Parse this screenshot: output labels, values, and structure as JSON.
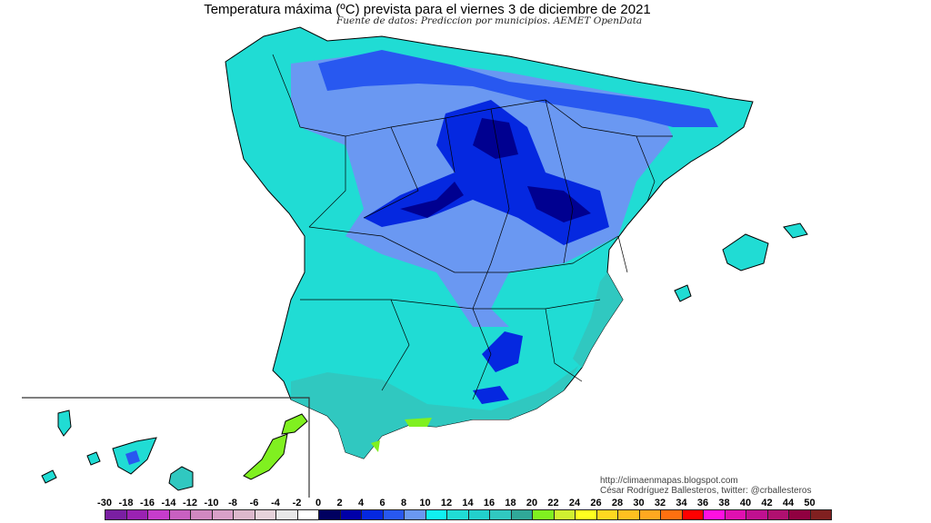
{
  "title": "Temperatura máxima (ºC) prevista para el viernes 3 de diciembre de 2021",
  "subtitle": "Fuente de datos: Prediccion por municipios. AEMET OpenData",
  "credits": {
    "url": "http://climaenmapas.blogspot.com",
    "author": "César Rodríguez Ballesteros, twitter: @crballesteros"
  },
  "legend": {
    "unit": "ºC",
    "labels": [
      "-30",
      "-18",
      "-16",
      "-14",
      "-12",
      "-10",
      "-8",
      "-6",
      "-4",
      "-2",
      "0",
      "2",
      "4",
      "6",
      "8",
      "10",
      "12",
      "14",
      "16",
      "18",
      "20",
      "22",
      "24",
      "26",
      "28",
      "30",
      "32",
      "34",
      "36",
      "38",
      "40",
      "42",
      "44",
      "50"
    ],
    "colors": [
      "#7a1fa2",
      "#9a22b2",
      "#c63ccc",
      "#c860c0",
      "#d088c0",
      "#d8a0c8",
      "#dcb8cc",
      "#e6d2da",
      "#e8e8e8",
      "#ffffff",
      "#000060",
      "#0000a8",
      "#0528e0",
      "#2858f0",
      "#6a98f2",
      "#10f0f0",
      "#20dcd4",
      "#22d0cc",
      "#30c8c0",
      "#30a898",
      "#80f020",
      "#d0f030",
      "#ffff20",
      "#ffd820",
      "#ffc020",
      "#ffa820",
      "#ff7010",
      "#ff0000",
      "#ff10e0",
      "#e010b0",
      "#c01090",
      "#b01070",
      "#900040",
      "#802020"
    ]
  },
  "map": {
    "region": "España peninsular, Baleares y Canarias",
    "dominant_colors": {
      "warm": "#20dcd4",
      "mild": "#6a98f2",
      "cold": "#0528e0",
      "coldest": "#000080",
      "south": "#30a898",
      "canarias": "#80f020"
    }
  }
}
